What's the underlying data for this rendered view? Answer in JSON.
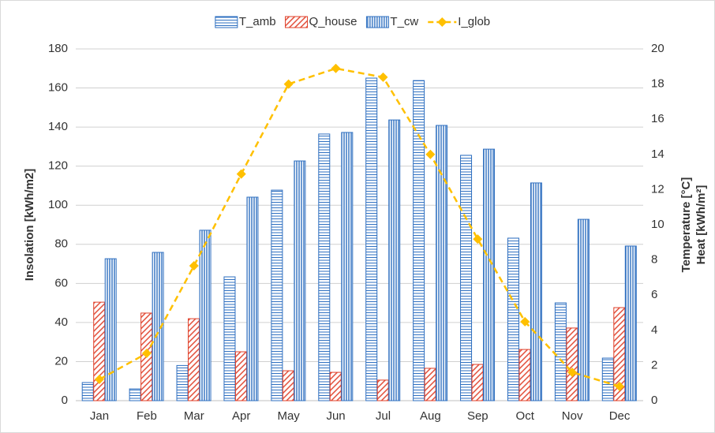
{
  "chart_data": {
    "type": "bar",
    "categories": [
      "Jan",
      "Feb",
      "Mar",
      "Apr",
      "May",
      "Jun",
      "Jul",
      "Aug",
      "Sep",
      "Oct",
      "Nov",
      "Dec"
    ],
    "series": [
      {
        "name": "T_amb",
        "color": "#2e6fc0",
        "pattern": "horizontal",
        "axis": "y2",
        "values": [
          1.03,
          0.67,
          2.0,
          7.04,
          11.97,
          15.16,
          18.34,
          18.2,
          13.95,
          9.24,
          5.56,
          2.42
        ]
      },
      {
        "name": "Q_house",
        "color": "#e0402a",
        "pattern": "diagonal",
        "axis": "y2",
        "values": [
          5.6,
          4.98,
          4.66,
          2.78,
          1.7,
          1.61,
          1.17,
          1.84,
          2.06,
          2.91,
          4.13,
          5.29
        ]
      },
      {
        "name": "T_cw",
        "color": "#2e6fc0",
        "pattern": "vertical",
        "axis": "y2",
        "values": [
          8.07,
          8.43,
          9.69,
          11.57,
          13.63,
          15.25,
          15.96,
          15.65,
          14.3,
          12.38,
          10.31,
          8.79
        ]
      },
      {
        "name": "I_glob",
        "color": "#ffc000",
        "type": "line",
        "axis": "y",
        "values": [
          10.9,
          24.2,
          69,
          116,
          162,
          170,
          165.5,
          126,
          82.7,
          40.4,
          14.5,
          7.3
        ]
      }
    ],
    "ylabel": "Insolation [kWh/m2]",
    "y2label": [
      "Temperature [°C]",
      "Heat [kWh/m²]"
    ],
    "ylim": [
      0,
      180
    ],
    "yticks": [
      0,
      20,
      40,
      60,
      80,
      100,
      120,
      140,
      160,
      180
    ],
    "y2lim": [
      0,
      20
    ],
    "y2ticks": [
      0,
      2,
      4,
      6,
      8,
      10,
      12,
      14,
      16,
      18,
      20
    ],
    "grid": true,
    "legend": "top"
  }
}
